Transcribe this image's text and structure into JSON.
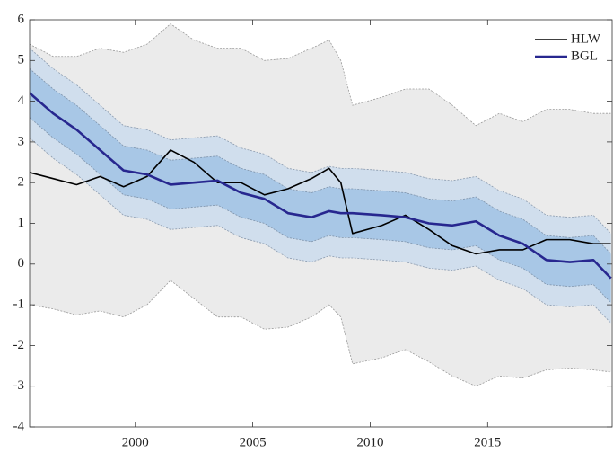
{
  "chart_data": {
    "type": "fan",
    "x": [
      1995.5,
      1996.5,
      1997.5,
      1998.5,
      1999.5,
      2000.5,
      2001.5,
      2002.5,
      2003.5,
      2004.5,
      2005.5,
      2006.5,
      2007.5,
      2008.25,
      2008.75,
      2009.25,
      2010.5,
      2011.5,
      2012.5,
      2013.5,
      2014.5,
      2015.5,
      2016.5,
      2017.5,
      2018.5,
      2019.5,
      2020.25
    ],
    "bands": [
      {
        "color": "#ebebeb",
        "edge_color": "#9a9a9a",
        "upper": [
          5.4,
          5.1,
          5.1,
          5.3,
          5.2,
          5.4,
          5.9,
          5.5,
          5.3,
          5.3,
          5.0,
          5.05,
          5.3,
          5.5,
          5.0,
          3.9,
          4.1,
          4.3,
          4.3,
          3.9,
          3.4,
          3.7,
          3.5,
          3.8,
          3.8,
          3.7,
          3.7
        ],
        "lower": [
          -1.0,
          -1.1,
          -1.25,
          -1.15,
          -1.3,
          -1.0,
          -0.4,
          -0.85,
          -1.3,
          -1.3,
          -1.6,
          -1.55,
          -1.3,
          -1.0,
          -1.3,
          -2.45,
          -2.3,
          -2.1,
          -2.4,
          -2.75,
          -3.0,
          -2.75,
          -2.8,
          -2.6,
          -2.55,
          -2.6,
          -2.65
        ]
      },
      {
        "color": "#d0deed",
        "edge_color": "#8a9aae",
        "upper": [
          5.3,
          4.8,
          4.4,
          3.9,
          3.4,
          3.3,
          3.05,
          3.1,
          3.15,
          2.85,
          2.7,
          2.35,
          2.25,
          2.4,
          2.35,
          2.35,
          2.3,
          2.25,
          2.1,
          2.05,
          2.15,
          1.8,
          1.6,
          1.2,
          1.15,
          1.2,
          0.75
        ],
        "lower": [
          3.1,
          2.6,
          2.2,
          1.7,
          1.2,
          1.1,
          0.85,
          0.9,
          0.95,
          0.65,
          0.5,
          0.15,
          0.05,
          0.2,
          0.15,
          0.15,
          0.1,
          0.05,
          -0.1,
          -0.15,
          -0.05,
          -0.4,
          -0.6,
          -1.0,
          -1.05,
          -1.0,
          -1.45
        ]
      },
      {
        "color": "#a8c7e6",
        "edge_color": "#7f93aa",
        "upper": [
          4.8,
          4.3,
          3.9,
          3.4,
          2.9,
          2.8,
          2.55,
          2.6,
          2.65,
          2.35,
          2.2,
          1.85,
          1.75,
          1.9,
          1.85,
          1.85,
          1.8,
          1.75,
          1.6,
          1.55,
          1.65,
          1.3,
          1.1,
          0.7,
          0.65,
          0.7,
          0.25
        ],
        "lower": [
          3.6,
          3.1,
          2.7,
          2.2,
          1.7,
          1.6,
          1.35,
          1.4,
          1.45,
          1.15,
          1.0,
          0.65,
          0.55,
          0.7,
          0.65,
          0.65,
          0.6,
          0.55,
          0.4,
          0.35,
          0.45,
          0.1,
          -0.1,
          -0.5,
          -0.55,
          -0.5,
          -0.95
        ]
      }
    ],
    "series": [
      {
        "name": "HLW",
        "color": "#000000",
        "width": 1.6,
        "values": [
          2.25,
          2.1,
          1.95,
          2.15,
          1.9,
          2.15,
          2.8,
          2.5,
          2.0,
          2.0,
          1.7,
          1.85,
          2.1,
          2.35,
          2.0,
          0.75,
          0.95,
          1.2,
          0.85,
          0.45,
          0.25,
          0.35,
          0.35,
          0.6,
          0.6,
          0.5,
          0.5
        ]
      },
      {
        "name": "BGL",
        "color": "#27278f",
        "width": 2.6,
        "values": [
          4.2,
          3.7,
          3.3,
          2.8,
          2.3,
          2.2,
          1.95,
          2.0,
          2.05,
          1.75,
          1.6,
          1.25,
          1.15,
          1.3,
          1.25,
          1.25,
          1.2,
          1.15,
          1.0,
          0.95,
          1.05,
          0.7,
          0.5,
          0.1,
          0.05,
          0.1,
          -0.35
        ]
      }
    ],
    "xlim": [
      1995.5,
      2020.3
    ],
    "ylim": [
      -4,
      6
    ],
    "xticks": [
      2000,
      2005,
      2010,
      2015
    ],
    "yticks": [
      -4,
      -3,
      -2,
      -1,
      0,
      1,
      2,
      3,
      4,
      5,
      6
    ],
    "grid": false,
    "legend": "top-right"
  }
}
